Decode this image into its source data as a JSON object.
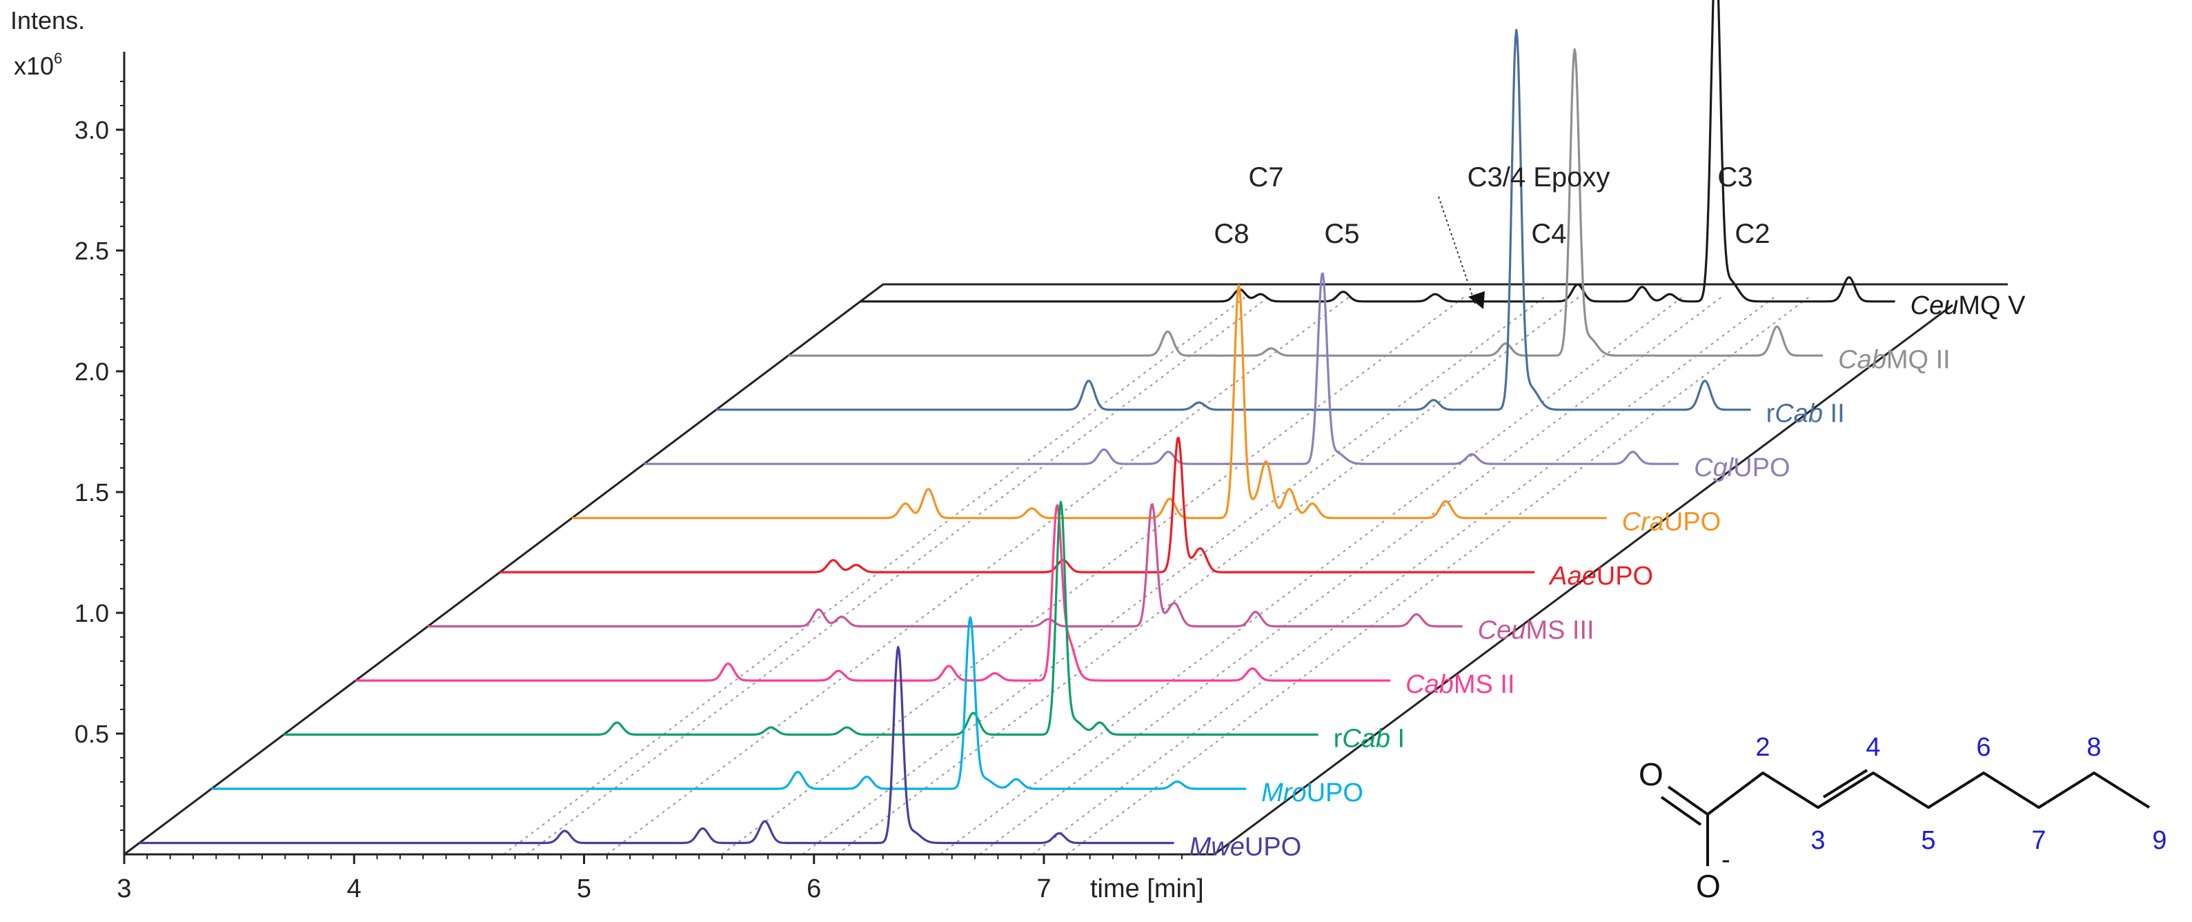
{
  "chart_data": {
    "type": "line",
    "subtype": "3d-stacked-chromatograms",
    "y_axis": {
      "title_line1": "Intens.",
      "title_line2_base": "x10",
      "title_line2_exp": "6",
      "ticks": [
        0.5,
        1.0,
        1.5,
        2.0,
        2.5,
        3.0
      ],
      "tick_labels": [
        "0.5",
        "1.0",
        "1.5",
        "2.0",
        "2.5",
        "3.0"
      ],
      "range": [
        0,
        3.3
      ]
    },
    "x_axis": {
      "title": "time [min]",
      "ticks": [
        3,
        4,
        5,
        6,
        7
      ],
      "tick_labels": [
        "3",
        "4",
        "5",
        "6",
        "7"
      ],
      "range": [
        3,
        7.6
      ]
    },
    "peak_annotations": [
      {
        "label": "C8",
        "time": 4.65,
        "rank": 1
      },
      {
        "label": "C7",
        "time": 4.75,
        "rank": 2
      },
      {
        "label": "C5",
        "time": 5.1,
        "rank": 1
      },
      {
        "label": "C4",
        "time": 6.1,
        "rank": 1
      },
      {
        "label": "C3/4 Epoxy",
        "time": 5.95,
        "rank": 2
      },
      {
        "label": "C3",
        "time": 6.72,
        "rank": 2
      },
      {
        "label": "C2",
        "time": 6.95,
        "rank": 1
      }
    ],
    "series": [
      {
        "name_italic": "Ceu",
        "name_rest": "MQ V",
        "name_prefix": "",
        "color": "#1a1a1a",
        "peaks": [
          [
            4.65,
            0.05
          ],
          [
            4.74,
            0.03
          ],
          [
            5.1,
            0.04
          ],
          [
            5.5,
            0.03
          ],
          [
            6.12,
            0.07
          ],
          [
            6.4,
            0.06
          ],
          [
            6.52,
            0.03
          ],
          [
            6.72,
            1.45
          ],
          [
            7.3,
            0.1
          ]
        ]
      },
      {
        "name_italic": "Cab",
        "name_rest": "MQ II",
        "name_prefix": "",
        "color": "#8f8f8f",
        "peaks": [
          [
            4.65,
            0.1
          ],
          [
            5.1,
            0.03
          ],
          [
            6.12,
            0.05
          ],
          [
            6.42,
            1.25
          ],
          [
            7.3,
            0.12
          ]
        ]
      },
      {
        "name_italic": "Cab",
        "name_rest": " II",
        "name_prefix": "r",
        "color": "#4a6f9e",
        "peaks": [
          [
            4.62,
            0.12
          ],
          [
            5.1,
            0.03
          ],
          [
            6.12,
            0.04
          ],
          [
            6.48,
            1.55
          ],
          [
            7.3,
            0.12
          ]
        ]
      },
      {
        "name_italic": "Cgl",
        "name_rest": "UPO",
        "name_prefix": "",
        "color": "#8c7fb8",
        "peaks": [
          [
            5.0,
            0.06
          ],
          [
            5.28,
            0.05
          ],
          [
            5.95,
            0.78
          ],
          [
            6.6,
            0.04
          ],
          [
            7.3,
            0.05
          ]
        ]
      },
      {
        "name_italic": "Cra",
        "name_rest": "UPO",
        "name_prefix": "",
        "color": "#f7931e",
        "peaks": [
          [
            4.45,
            0.06
          ],
          [
            4.55,
            0.12
          ],
          [
            5.0,
            0.04
          ],
          [
            5.6,
            0.08
          ],
          [
            5.9,
            0.95
          ],
          [
            6.02,
            0.22
          ],
          [
            6.12,
            0.12
          ],
          [
            6.22,
            0.06
          ],
          [
            6.8,
            0.07
          ]
        ]
      },
      {
        "name_italic": "Aae",
        "name_rest": "UPO",
        "name_prefix": "",
        "color": "#ee1c24",
        "peaks": [
          [
            4.45,
            0.05
          ],
          [
            4.55,
            0.03
          ],
          [
            5.45,
            0.05
          ],
          [
            5.95,
            0.55
          ],
          [
            6.05,
            0.08
          ]
        ]
      },
      {
        "name_italic": "Ceu",
        "name_rest": "MS III",
        "name_prefix": "",
        "color": "#c8569a",
        "peaks": [
          [
            4.7,
            0.07
          ],
          [
            4.8,
            0.04
          ],
          [
            5.7,
            0.03
          ],
          [
            6.15,
            0.5
          ],
          [
            6.25,
            0.08
          ],
          [
            6.6,
            0.06
          ],
          [
            7.3,
            0.05
          ]
        ]
      },
      {
        "name_italic": "Cab",
        "name_rest": "MS II",
        "name_prefix": "",
        "color": "#ff3c96",
        "peaks": [
          [
            4.62,
            0.07
          ],
          [
            5.1,
            0.04
          ],
          [
            5.58,
            0.06
          ],
          [
            5.78,
            0.03
          ],
          [
            6.05,
            0.7
          ],
          [
            6.1,
            0.12
          ],
          [
            6.9,
            0.05
          ]
        ]
      },
      {
        "name_italic": "Cab",
        "name_rest": " I",
        "name_prefix": "r",
        "color": "#0aa063",
        "peaks": [
          [
            4.45,
            0.05
          ],
          [
            5.12,
            0.03
          ],
          [
            5.45,
            0.03
          ],
          [
            6.0,
            0.09
          ],
          [
            6.38,
            0.95
          ],
          [
            6.55,
            0.05
          ]
        ]
      },
      {
        "name_italic": "Mro",
        "name_rest": "UPO",
        "name_prefix": "",
        "color": "#00b0e8",
        "peaks": [
          [
            5.55,
            0.07
          ],
          [
            5.85,
            0.05
          ],
          [
            6.3,
            0.7
          ],
          [
            6.5,
            0.04
          ],
          [
            7.2,
            0.03
          ]
        ]
      },
      {
        "name_italic": "Mwe",
        "name_rest": "UPO",
        "name_prefix": "",
        "color": "#4a3ca0",
        "peaks": [
          [
            4.85,
            0.05
          ],
          [
            5.45,
            0.06
          ],
          [
            5.72,
            0.09
          ],
          [
            6.3,
            0.8
          ],
          [
            7.0,
            0.04
          ]
        ]
      }
    ]
  },
  "structure": {
    "atoms": {
      "O_top": "O",
      "O_bottom": "O",
      "charge": "-"
    },
    "numbers": [
      "2",
      "3",
      "4",
      "5",
      "6",
      "7",
      "8",
      "9"
    ],
    "number_color": "#1a1adc"
  }
}
